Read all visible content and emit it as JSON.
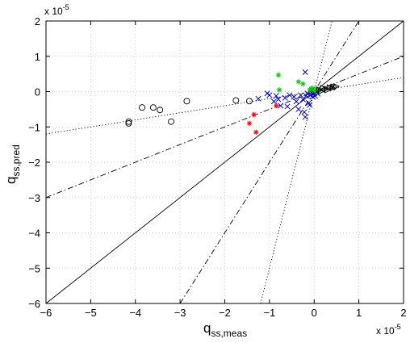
{
  "chart_data": {
    "type": "scatter",
    "title": "",
    "xlabel": {
      "main": "q",
      "sub": "ss,meas"
    },
    "ylabel": {
      "main": "q",
      "sub": "ss,pred"
    },
    "x_multiplier": "x 10",
    "x_multiplier_exp": "-5",
    "y_multiplier": "x 10",
    "y_multiplier_exp": "-5",
    "xlim": [
      -6,
      2
    ],
    "ylim": [
      -6,
      2
    ],
    "xticks": [
      -6,
      -5,
      -4,
      -3,
      -2,
      -1,
      0,
      1,
      2
    ],
    "yticks": [
      -6,
      -5,
      -4,
      -3,
      -2,
      -1,
      0,
      1,
      2
    ],
    "xtick_labels": [
      "−6",
      "−5",
      "−4",
      "−3",
      "−2",
      "−1",
      "0",
      "1",
      "2"
    ],
    "ytick_labels": [
      "−6",
      "−5",
      "−4",
      "−3",
      "−2",
      "−1",
      "0",
      "1",
      "2"
    ],
    "grid": true,
    "reference_lines": [
      {
        "style": "solid",
        "slope": 1
      },
      {
        "style": "dashdot",
        "slope": 0.5
      },
      {
        "style": "dashdot",
        "slope": 2
      },
      {
        "style": "dotted",
        "slope": 0.2
      },
      {
        "style": "dotted",
        "slope": 5
      }
    ],
    "series": [
      {
        "marker": "circle",
        "color": "#000000",
        "points": [
          [
            -4.15,
            -0.85
          ],
          [
            -4.15,
            -0.9
          ],
          [
            -3.85,
            -0.45
          ],
          [
            -3.6,
            -0.45
          ],
          [
            -3.45,
            -0.52
          ],
          [
            -3.2,
            -0.85
          ],
          [
            -2.85,
            -0.27
          ],
          [
            -1.75,
            -0.25
          ],
          [
            -1.45,
            -0.27
          ]
        ]
      },
      {
        "marker": "star",
        "color": "#ff0000",
        "points": [
          [
            -1.35,
            -0.65
          ],
          [
            -1.45,
            -0.9
          ],
          [
            -1.3,
            -1.15
          ],
          [
            -0.85,
            -0.4
          ]
        ]
      },
      {
        "marker": "cross",
        "color": "#0000cc",
        "points": [
          [
            -1.25,
            -0.2
          ],
          [
            -1.0,
            -0.1
          ],
          [
            -0.9,
            -0.28
          ],
          [
            -0.85,
            -0.12
          ],
          [
            -0.8,
            -0.22
          ],
          [
            -0.75,
            -0.4
          ],
          [
            -0.65,
            -0.18
          ],
          [
            -0.6,
            -0.42
          ],
          [
            -0.55,
            -0.1
          ],
          [
            -0.45,
            -0.15
          ],
          [
            -0.4,
            -0.28
          ],
          [
            -0.3,
            -0.1
          ],
          [
            -0.25,
            -0.22
          ],
          [
            -0.22,
            -0.58
          ],
          [
            -0.2,
            -0.72
          ],
          [
            -0.2,
            0.55
          ],
          [
            -0.15,
            -0.05
          ],
          [
            -0.12,
            -0.32
          ],
          [
            -0.1,
            -0.38
          ],
          [
            -0.08,
            -0.1
          ],
          [
            -0.05,
            0.05
          ],
          [
            -0.03,
            -0.15
          ],
          [
            0.0,
            -0.05
          ],
          [
            0.02,
            -0.12
          ],
          [
            0.05,
            -0.02
          ],
          [
            -0.18,
            -0.12
          ],
          [
            -0.02,
            -0.08
          ],
          [
            0.08,
            -0.06
          ],
          [
            -1.05,
            -0.05
          ],
          [
            -0.35,
            -0.5
          ]
        ]
      },
      {
        "marker": "star",
        "color": "#00cc00",
        "points": [
          [
            -0.8,
            0.47
          ],
          [
            -0.78,
            0.05
          ],
          [
            -0.35,
            0.28
          ],
          [
            -0.25,
            0.22
          ],
          [
            -0.1,
            0.05
          ],
          [
            -0.05,
            0.1
          ],
          [
            0.0,
            0.02
          ],
          [
            0.05,
            0.08
          ],
          [
            0.1,
            0.0
          ]
        ]
      },
      {
        "marker": "triangle-right",
        "color": "#000000",
        "points": [
          [
            0.12,
            0.05
          ],
          [
            0.2,
            0.1
          ],
          [
            0.28,
            0.08
          ],
          [
            0.35,
            0.12
          ],
          [
            0.42,
            0.1
          ],
          [
            0.5,
            0.15
          ],
          [
            0.15,
            0.0
          ],
          [
            0.3,
            0.04
          ]
        ]
      },
      {
        "marker": "diamond",
        "color": "#000000",
        "points": [
          [
            0.22,
            0.06
          ],
          [
            0.38,
            0.14
          ],
          [
            0.45,
            0.12
          ]
        ]
      }
    ]
  }
}
